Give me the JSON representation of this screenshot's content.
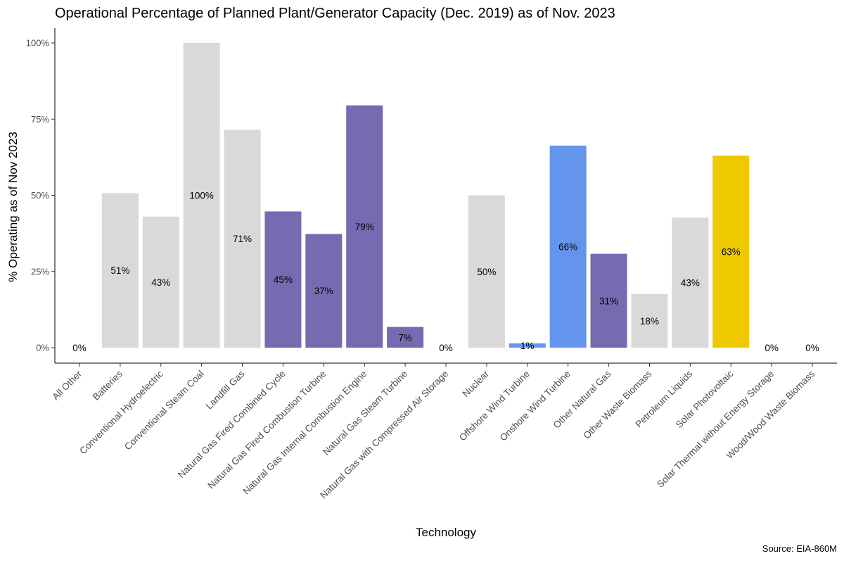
{
  "chart_data": {
    "type": "bar",
    "title": "Operational Percentage of Planned Plant/Generator Capacity (Dec. 2019) as of Nov. 2023",
    "xlabel": "Technology",
    "ylabel": "% Operating as of Nov 2023",
    "source": "Source: EIA-860M",
    "ylim": [
      0,
      1.05
    ],
    "yticks": [
      0,
      0.25,
      0.5,
      0.75,
      1.0
    ],
    "ytick_labels": [
      "0%",
      "25%",
      "50%",
      "75%",
      "100%"
    ],
    "grid": false,
    "legend": "none",
    "colors": {
      "gray": "#d9d9d9",
      "purple": "#756bb1",
      "blue": "#6495ed",
      "gold": "#eec900"
    },
    "categories": [
      "All Other",
      "Batteries",
      "Conventional Hydroelectric",
      "Conventional Steam Coal",
      "Landfill Gas",
      "Natural Gas Fired Combined Cycle",
      "Natural Gas Fired Combustion Turbine",
      "Natural Gas Internal Combustion Engine",
      "Natural Gas Steam Turbine",
      "Natural Gas with Compressed Air Storage",
      "Nuclear",
      "Offshore Wind Turbine",
      "Onshore Wind Turbine",
      "Other Natural Gas",
      "Other Waste Biomass",
      "Petroleum Liquids",
      "Solar Photovoltaic",
      "Solar Thermal without Energy Storage",
      "Wood/Wood Waste Biomass"
    ],
    "values": [
      0,
      0.507,
      0.43,
      1.0,
      0.715,
      0.447,
      0.373,
      0.795,
      0.068,
      0,
      0.5,
      0.014,
      0.663,
      0.308,
      0.176,
      0.427,
      0.63,
      0,
      0
    ],
    "labels": [
      "0%",
      "51%",
      "43%",
      "100%",
      "71%",
      "45%",
      "37%",
      "79%",
      "7%",
      "0%",
      "50%",
      "1%",
      "66%",
      "31%",
      "18%",
      "43%",
      "63%",
      "0%",
      "0%"
    ],
    "bar_colors": [
      "gray",
      "gray",
      "gray",
      "gray",
      "gray",
      "purple",
      "purple",
      "purple",
      "purple",
      "purple",
      "gray",
      "blue",
      "blue",
      "purple",
      "gray",
      "gray",
      "gold",
      "gold",
      "gray"
    ]
  }
}
